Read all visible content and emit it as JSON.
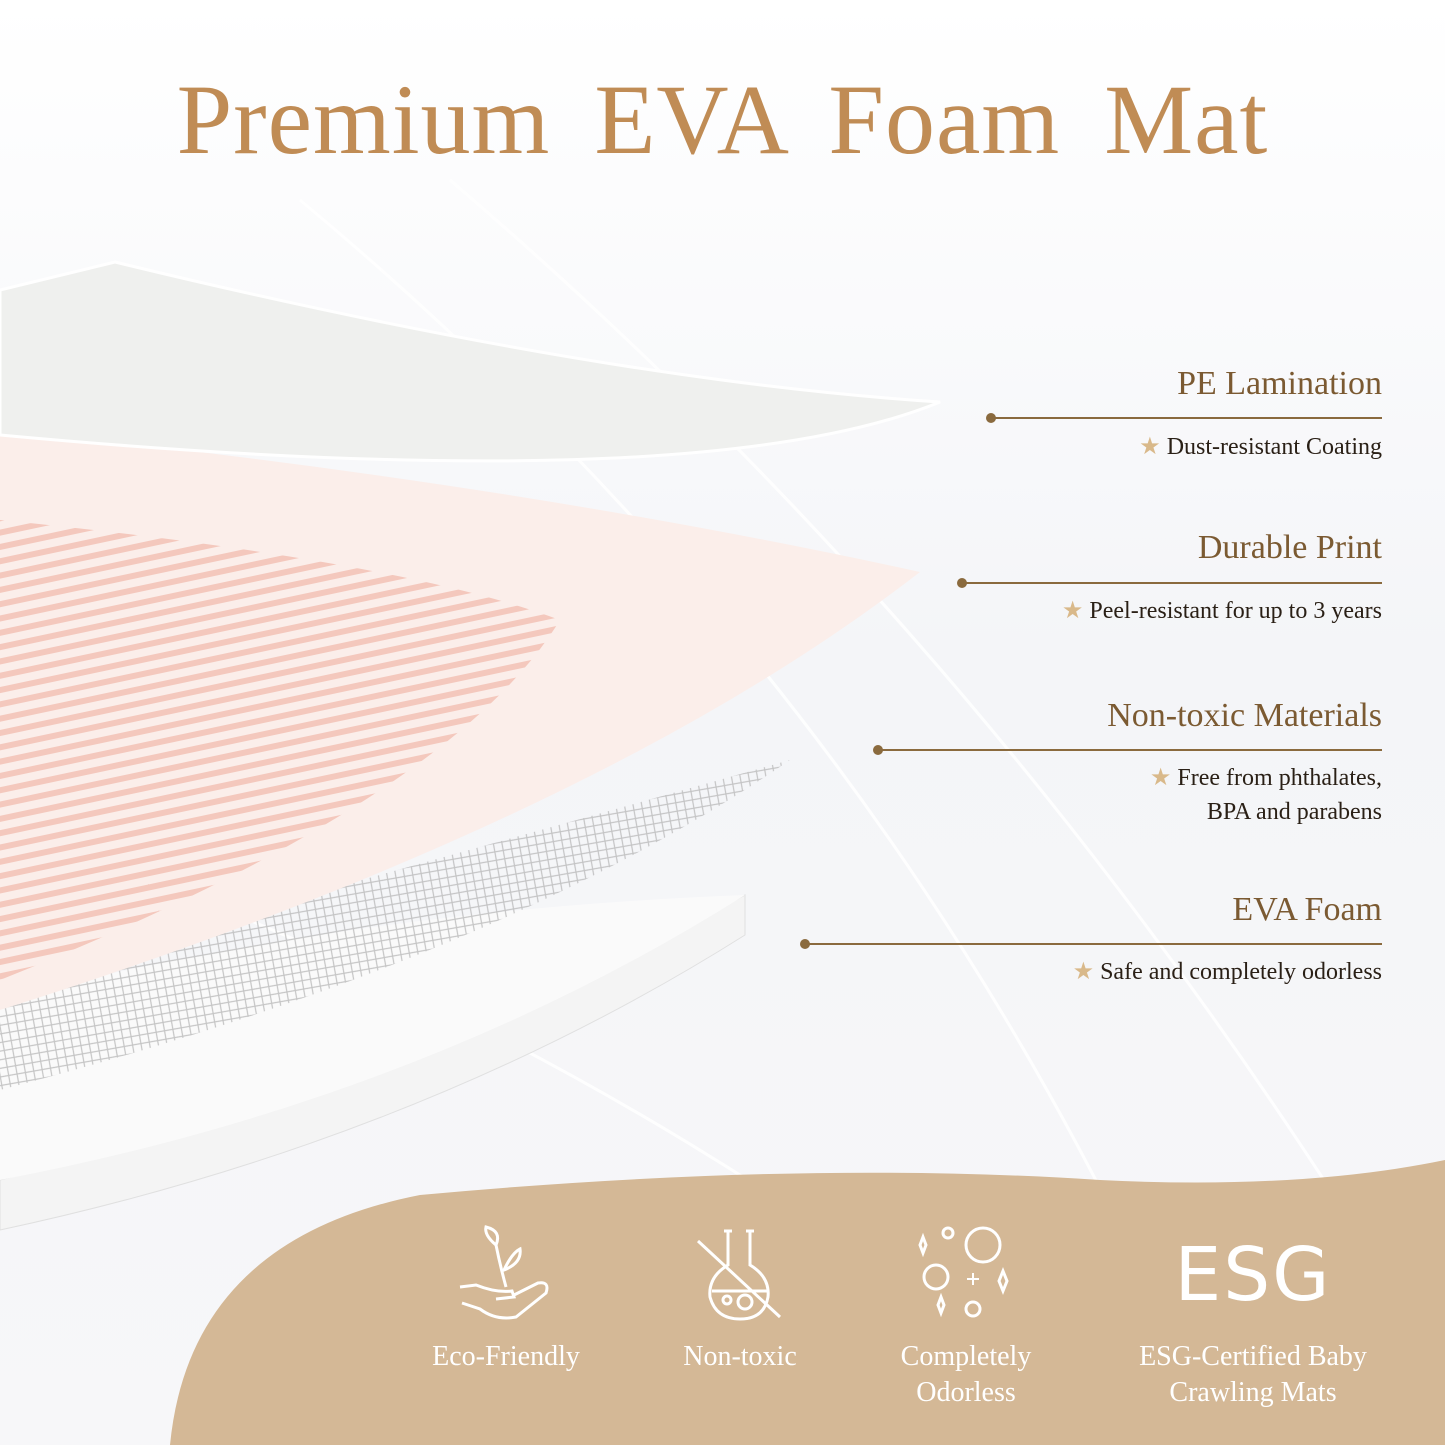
{
  "title": "Premium EVA Foam Mat",
  "colors": {
    "title": "#c08c55",
    "heading": "#7b5a32",
    "rule": "#8a6a3e",
    "star": "#d9b98a",
    "band": "#d4b896"
  },
  "features": [
    {
      "heading": "PE Lamination",
      "lines": [
        "Dust-resistant Coating"
      ]
    },
    {
      "heading": "Durable Print",
      "lines": [
        "Peel-resistant for up to 3 years"
      ]
    },
    {
      "heading": "Non-toxic Materials",
      "lines": [
        "Free from phthalates,",
        "BPA and parabens"
      ]
    },
    {
      "heading": "EVA Foam",
      "lines": [
        "Safe and completely odorless"
      ]
    }
  ],
  "badges": [
    {
      "icon": "plant-in-hand-icon",
      "label_lines": [
        "Eco-Friendly"
      ]
    },
    {
      "icon": "crossed-flask-icon",
      "label_lines": [
        "Non-toxic"
      ]
    },
    {
      "icon": "bubbles-sparkles-icon",
      "label_lines": [
        "Completely",
        "Odorless"
      ]
    },
    {
      "icon": "esg-text-icon",
      "icon_text": "ESG",
      "label_lines": [
        "ESG-Certified Baby",
        "Crawling Mats"
      ]
    }
  ]
}
